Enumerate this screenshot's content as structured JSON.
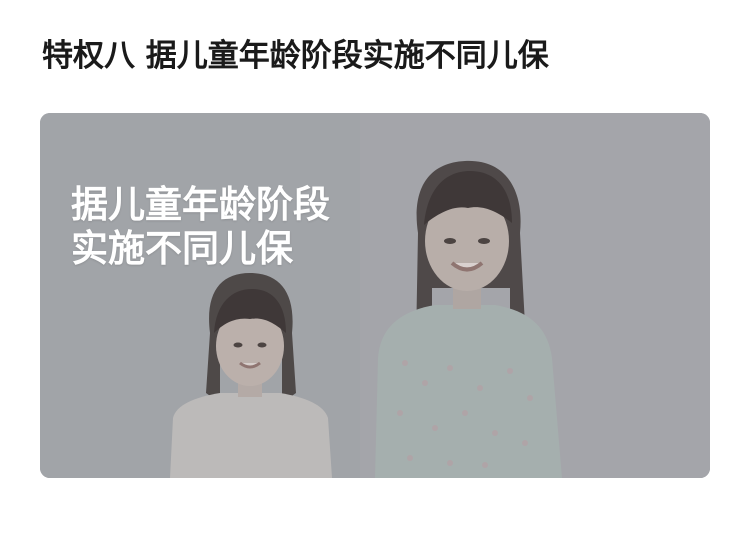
{
  "section": {
    "title": "特权八 据儿童年龄阶段实施不同儿保"
  },
  "banner": {
    "caption_line1": "据儿童年龄阶段",
    "caption_line2": "实施不同儿保",
    "image_subject": "two-children-photo"
  },
  "colors": {
    "title_text": "#1a1a1a",
    "banner_overlay": "#9fa2a6",
    "caption_text": "#ffffff"
  }
}
